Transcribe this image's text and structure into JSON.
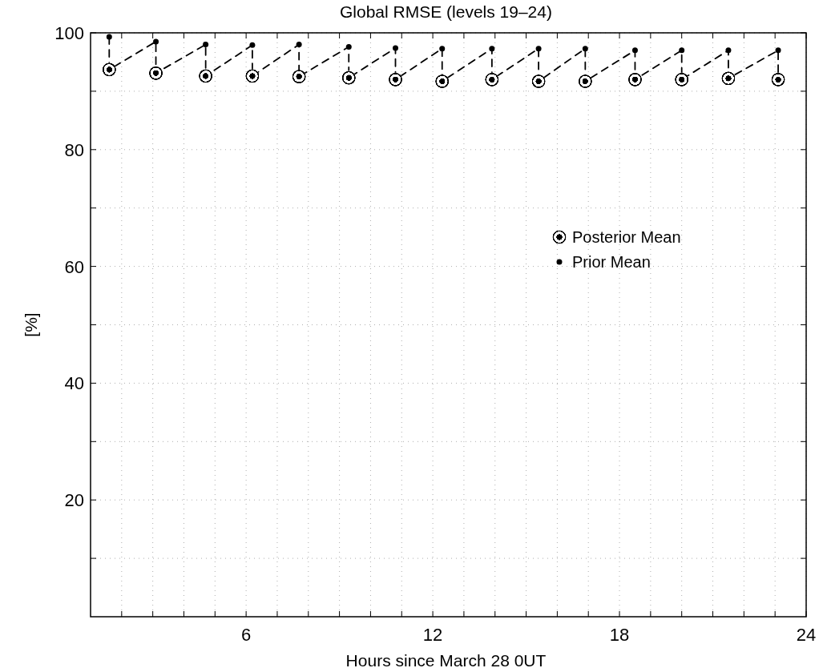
{
  "chart_data": {
    "type": "scatter",
    "title": "Global RMSE (levels 19–24)",
    "xlabel": "Hours since March 28 0UT",
    "ylabel": "[%]",
    "x": [
      1.6,
      3.1,
      4.7,
      6.2,
      7.7,
      9.3,
      10.8,
      12.3,
      13.9,
      15.4,
      16.9,
      18.5,
      20.0,
      21.5,
      23.1
    ],
    "series": [
      {
        "type": "line",
        "color": "#000000",
        "line_style": "dashed",
        "x": [
          1.6,
          1.6,
          3.1,
          3.1,
          4.7,
          4.7,
          6.2,
          6.2,
          7.7,
          7.7,
          9.3,
          9.3,
          10.8,
          10.8,
          12.3,
          12.3,
          13.9,
          13.9,
          15.4,
          15.4,
          16.9,
          16.9,
          18.5,
          18.5,
          20.0,
          20.0,
          21.5,
          21.5,
          23.1,
          23.1
        ],
        "values": [
          99.3,
          93.7,
          98.5,
          93.1,
          98.0,
          92.6,
          97.9,
          92.6,
          98.0,
          92.5,
          97.6,
          92.3,
          97.4,
          92.0,
          97.3,
          91.7,
          97.3,
          92.0,
          97.3,
          91.7,
          97.3,
          91.7,
          97.0,
          92.0,
          97.0,
          92.0,
          97.0,
          92.2,
          97.0,
          92.0
        ]
      },
      {
        "name": "Posterior Mean",
        "color": "#000000",
        "marker": "circle",
        "values": [
          93.7,
          93.1,
          92.6,
          92.6,
          92.5,
          92.3,
          92.0,
          91.7,
          92.0,
          91.7,
          91.7,
          92.0,
          92.0,
          92.2,
          92.0
        ]
      },
      {
        "name": "Prior Mean",
        "color": "#000000",
        "marker": "circle",
        "values": [
          99.3,
          98.5,
          98.0,
          97.9,
          98.0,
          97.6,
          97.4,
          97.3,
          97.3,
          97.3,
          97.3,
          97.0,
          97.0,
          97.0,
          97.0
        ]
      }
    ],
    "xlim": [
      1,
      24
    ],
    "xticks": [
      {
        "value": 2,
        "label": null
      },
      {
        "value": 3,
        "label": null
      },
      {
        "value": 4,
        "label": null
      },
      {
        "value": 5,
        "label": null
      },
      6,
      {
        "value": 7,
        "label": null
      },
      {
        "value": 8,
        "label": null
      },
      {
        "value": 9,
        "label": null
      },
      {
        "value": 10,
        "label": null
      },
      {
        "value": 11,
        "label": null
      },
      12,
      {
        "value": 13,
        "label": null
      },
      {
        "value": 14,
        "label": null
      },
      {
        "value": 15,
        "label": null
      },
      {
        "value": 16,
        "label": null
      },
      {
        "value": 17,
        "label": null
      },
      18,
      {
        "value": 19,
        "label": null
      },
      {
        "value": 20,
        "label": null
      },
      {
        "value": 21,
        "label": null
      },
      {
        "value": 22,
        "label": null
      },
      {
        "value": 23,
        "label": null
      },
      24
    ],
    "ylim": [
      0,
      100
    ],
    "yticks": [
      {
        "value": 10,
        "label": null
      },
      20,
      {
        "value": 30,
        "label": null
      },
      40,
      {
        "value": 50,
        "label": null
      },
      60,
      {
        "value": 70,
        "label": null
      },
      80,
      {
        "value": 90,
        "label": null
      },
      100
    ],
    "grid": true,
    "legend": "right"
  }
}
